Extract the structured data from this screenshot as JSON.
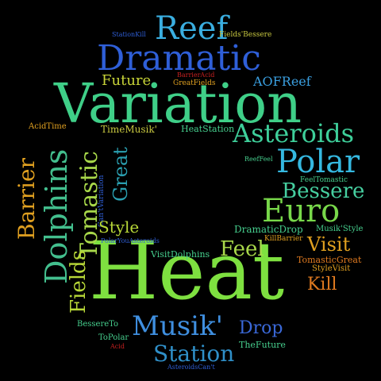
{
  "background": "#000000",
  "words": [
    {
      "text": "Heat",
      "color": "#7ee040"
    },
    {
      "text": "Variation",
      "color": "#3fcf88"
    },
    {
      "text": "Dramatic",
      "color": "#2f5fd8"
    },
    {
      "text": "Reef",
      "color": "#3aaee0"
    },
    {
      "text": "Dolphins",
      "color": "#43bf8e"
    },
    {
      "text": "Tomastic",
      "color": "#a8d84a"
    },
    {
      "text": "Asteroids",
      "color": "#3ecf9a"
    },
    {
      "text": "Polar",
      "color": "#35b8e0"
    },
    {
      "text": "Euro",
      "color": "#78d84a"
    },
    {
      "text": "Bessere",
      "color": "#46cfa0"
    },
    {
      "text": "Barrier",
      "color": "#e0a020"
    },
    {
      "text": "Great",
      "color": "#2a9fb0"
    },
    {
      "text": "Fields",
      "color": "#b8d838"
    },
    {
      "text": "Musik'",
      "color": "#3f8fe0"
    },
    {
      "text": "Station",
      "color": "#2f8fc8"
    },
    {
      "text": "Visit",
      "color": "#e0a020"
    },
    {
      "text": "Feel",
      "color": "#a8d84a"
    },
    {
      "text": "Future",
      "color": "#c8d438"
    },
    {
      "text": "AOFReef",
      "color": "#3a9fe0"
    },
    {
      "text": "Style",
      "color": "#b8d838"
    },
    {
      "text": "Drop",
      "color": "#3a68d8"
    },
    {
      "text": "Kill",
      "color": "#e07a20"
    },
    {
      "text": "TimeMusik'",
      "color": "#c8c840"
    },
    {
      "text": "HeatStation",
      "color": "#46cf8e"
    },
    {
      "text": "AcidTime",
      "color": "#e0a020"
    },
    {
      "text": "DramaticDrop",
      "color": "#46cf8e"
    },
    {
      "text": "Musik'Style",
      "color": "#46cf8e"
    },
    {
      "text": "VisitDolphins",
      "color": "#46cf8e"
    },
    {
      "text": "TheFuture",
      "color": "#46cf8e"
    },
    {
      "text": "FeelTomastic",
      "color": "#46cf8e"
    },
    {
      "text": "TomasticGreat",
      "color": "#e07a20"
    },
    {
      "text": "StyleVisit",
      "color": "#e0a020"
    },
    {
      "text": "KillBarrier",
      "color": "#e0a020"
    },
    {
      "text": "StationKill",
      "color": "#2f5fd8"
    },
    {
      "text": "Fields'Bessere",
      "color": "#c8c840"
    },
    {
      "text": "BarrierAcid",
      "color": "#c82020"
    },
    {
      "text": "GreatFields",
      "color": "#e0a020"
    },
    {
      "text": "ReefFeel",
      "color": "#46cf8e"
    },
    {
      "text": "Can'tVariation",
      "color": "#2f5fd8"
    },
    {
      "text": "PolarYouAsteroids",
      "color": "#2f5fd8"
    },
    {
      "text": "BessereTo",
      "color": "#46cf8e"
    },
    {
      "text": "ToPolar",
      "color": "#46cf8e"
    },
    {
      "text": "Acid",
      "color": "#c82020"
    },
    {
      "text": "AsteroidsCan't",
      "color": "#2f5fd8"
    }
  ]
}
